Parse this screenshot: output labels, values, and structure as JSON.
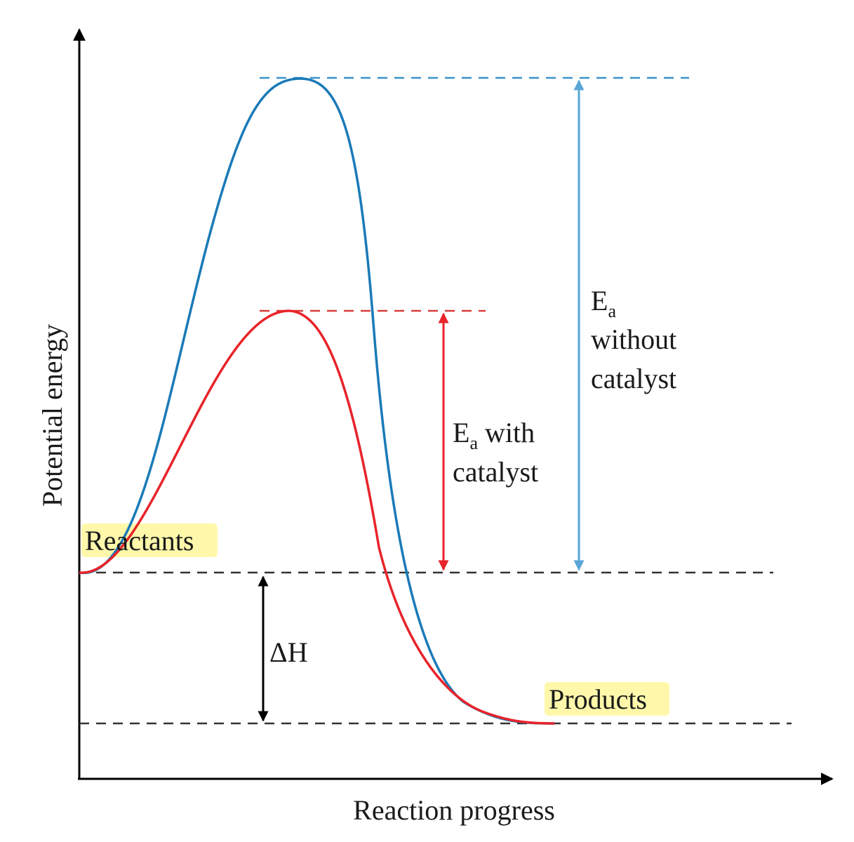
{
  "diagram": {
    "axes": {
      "x_label": "Reaction progress",
      "y_label": "Potential energy"
    },
    "labels": {
      "reactants": "Reactants",
      "products": "Products",
      "delta_h": "ΔH",
      "ea_symbol": "E",
      "ea_subscript": "a",
      "ea_with_line1_rest": " with",
      "ea_with_line2": "catalyst",
      "ea_without_line2": "without",
      "ea_without_line3": "catalyst"
    },
    "curves": [
      {
        "name": "without catalyst",
        "color": "#1a7ab8"
      },
      {
        "name": "with catalyst",
        "color": "#e8232a"
      }
    ],
    "colors": {
      "axis": "#000000",
      "reference_lines": "#333333",
      "delta_h_arrow": "#000000",
      "ea_without_arrow": "#5aa6d6",
      "ea_with_arrow": "#e8232a",
      "label_highlight": "#fff8a6"
    }
  }
}
